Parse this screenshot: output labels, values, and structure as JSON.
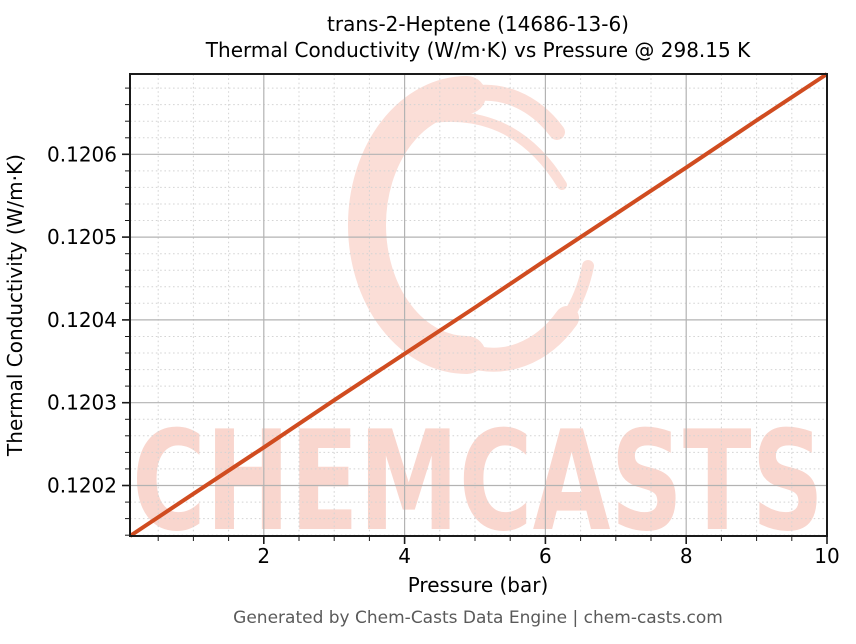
{
  "watermark": {
    "text": "CHEMCASTS"
  },
  "footer": {
    "text": "Generated by Chem-Casts Data Engine | chem-casts.com"
  },
  "chart_data": {
    "type": "line",
    "title_line1": "trans-2-Heptene (14686-13-6)",
    "title_line2": "Thermal Conductivity (W/m·K) vs Pressure @ 298.15 K",
    "xlabel": "Pressure (bar)",
    "ylabel": "Thermal Conductivity (W/m·K)",
    "xlim": [
      0.1,
      10
    ],
    "ylim": [
      0.120139,
      0.120697
    ],
    "xticks": [
      2,
      4,
      6,
      8,
      10
    ],
    "xtick_labels": [
      "2",
      "4",
      "6",
      "8",
      "10"
    ],
    "yticks": [
      0.1202,
      0.1203,
      0.1204,
      0.1205,
      0.1206
    ],
    "ytick_labels": [
      "0.1202",
      "0.1203",
      "0.1204",
      "0.1205",
      "0.1206"
    ],
    "x_minor_step": 0.5,
    "y_minor_step": 2e-05,
    "grid": true,
    "legend": "none",
    "series": [
      {
        "name": "Thermal Conductivity vs Pressure @ 298.15 K",
        "x": [
          0.1,
          1,
          2,
          3,
          4,
          5,
          6,
          7,
          8,
          9,
          10
        ],
        "y": [
          0.120139,
          0.12019,
          0.120246,
          0.120303,
          0.120359,
          0.120415,
          0.120472,
          0.120528,
          0.120584,
          0.120641,
          0.120697
        ]
      }
    ],
    "colors": {
      "line": "#d04c20",
      "watermark": "#fbded7",
      "watermark_text": "#f9d6ce",
      "grid_major": "#b3b3b3",
      "grid_minor": "#d4d4d4",
      "axis": "#1a1a1a",
      "footer_text": "#5a5a5a"
    }
  }
}
